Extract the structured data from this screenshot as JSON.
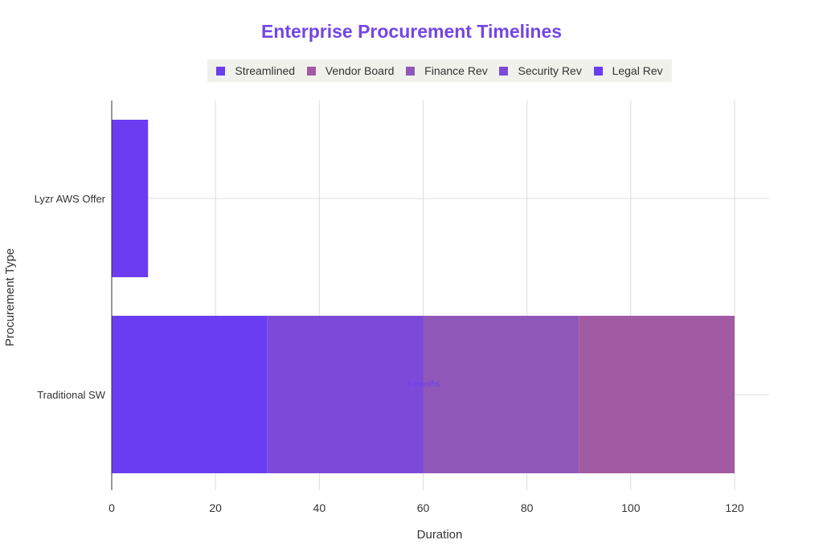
{
  "chart_data": {
    "type": "bar",
    "orientation": "horizontal",
    "stacked": true,
    "title": "Enterprise Procurement Timelines",
    "xlabel": "Duration",
    "ylabel": "Procurement Type",
    "categories": [
      "Lyzr AWS Offer",
      "Traditional SW"
    ],
    "xlim": [
      0,
      126
    ],
    "xticks": [
      0,
      20,
      40,
      60,
      80,
      100,
      120
    ],
    "grid": true,
    "legend_position": "top",
    "series": [
      {
        "name": "Streamlined",
        "color": "#6b3cf0",
        "values": [
          7,
          0
        ]
      },
      {
        "name": "Vendor Board",
        "color": "#a25aa2",
        "values": [
          0,
          30
        ]
      },
      {
        "name": "Finance Rev",
        "color": "#8f58b8",
        "values": [
          0,
          30
        ]
      },
      {
        "name": "Security Rev",
        "color": "#7c4ad8",
        "values": [
          0,
          30
        ]
      },
      {
        "name": "Legal Rev",
        "color": "#6a3df2",
        "values": [
          0,
          30
        ]
      }
    ],
    "stack_order": [
      "Streamlined",
      "Legal Rev",
      "Security Rev",
      "Finance Rev",
      "Vendor Board"
    ],
    "annotation": "4 months"
  }
}
